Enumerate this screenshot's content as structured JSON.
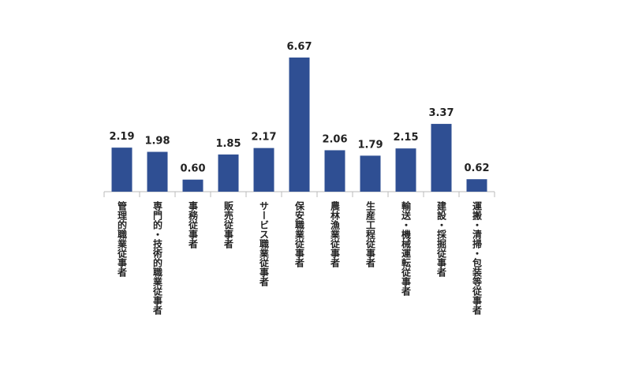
{
  "chart_data": {
    "type": "bar",
    "categories": [
      "管理的職業従事者",
      "専門的・技術的職業従事者",
      "事務従事者",
      "販売従事者",
      "サービス職業従事者",
      "保安職業従事者",
      "農林漁業従事者",
      "生産工程従事者",
      "輸送・機械運転従事者",
      "建設・採掘従事者",
      "運搬・清掃・包装等従事者"
    ],
    "values": [
      2.19,
      1.98,
      0.6,
      1.85,
      2.17,
      6.67,
      2.06,
      1.79,
      2.15,
      3.37,
      0.62
    ],
    "value_labels": [
      "2.19",
      "1.98",
      "0.60",
      "1.85",
      "2.17",
      "6.67",
      "2.06",
      "1.79",
      "2.15",
      "3.37",
      "0.62"
    ],
    "color": "#2f4f93"
  }
}
